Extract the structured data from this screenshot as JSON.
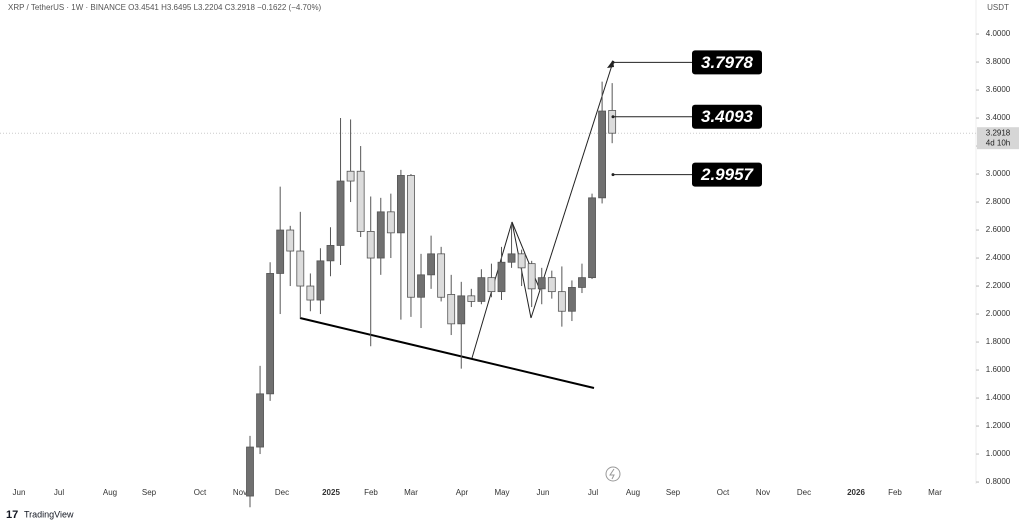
{
  "chart_data": {
    "type": "candlestick",
    "title": "XRP / TetherUS · 1W · BINANCE   O3.4541   H3.6495   L3.2204   C3.2918   −0.1622 (−4.70%)",
    "currency": "USDT",
    "open": [
      0.7,
      1.05,
      1.43,
      2.29,
      2.6,
      2.45,
      2.2,
      2.1,
      2.38,
      2.49,
      3.02,
      3.02,
      2.59,
      2.4,
      2.73,
      2.58,
      2.99,
      2.12,
      2.28,
      2.43,
      2.14,
      1.93,
      2.13,
      2.09,
      2.26,
      2.16,
      2.37,
      2.43,
      2.36,
      2.18,
      2.26,
      2.16,
      2.02,
      2.19,
      2.26,
      2.83,
      3.4541
    ],
    "high": [
      1.13,
      1.63,
      2.37,
      2.91,
      2.63,
      2.73,
      2.29,
      2.47,
      2.62,
      3.4,
      3.39,
      3.2,
      2.84,
      2.83,
      2.86,
      3.03,
      3.0,
      2.43,
      2.56,
      2.48,
      2.28,
      2.23,
      2.18,
      2.32,
      2.36,
      2.48,
      2.65,
      2.46,
      2.38,
      2.33,
      2.31,
      2.34,
      2.24,
      2.36,
      2.86,
      3.66,
      3.6495
    ],
    "low": [
      0.62,
      1.0,
      1.38,
      2.0,
      2.2,
      1.97,
      2.02,
      2.0,
      2.27,
      2.35,
      2.8,
      2.55,
      1.77,
      2.28,
      2.4,
      1.96,
      1.98,
      1.9,
      2.18,
      2.09,
      1.85,
      1.61,
      2.05,
      2.07,
      2.12,
      2.1,
      2.33,
      2.2,
      2.05,
      2.07,
      2.11,
      1.91,
      1.95,
      2.15,
      2.25,
      2.79,
      3.2204
    ],
    "close": [
      1.05,
      1.43,
      2.29,
      2.6,
      2.45,
      2.2,
      2.1,
      2.38,
      2.49,
      2.95,
      2.95,
      2.59,
      2.4,
      2.73,
      2.58,
      2.99,
      2.12,
      2.28,
      2.43,
      2.12,
      1.93,
      2.13,
      2.09,
      2.26,
      2.16,
      2.37,
      2.43,
      2.33,
      2.18,
      2.26,
      2.16,
      2.02,
      2.19,
      2.26,
      2.83,
      3.45,
      3.2918
    ],
    "up_color": "#707070",
    "down_color": "#dcdcdc",
    "ylim": [
      0.786,
      4.186
    ],
    "yticks": [
      {
        "value": 0.8,
        "label": "0.8000"
      },
      {
        "value": 1.0,
        "label": "1.0000"
      },
      {
        "value": 1.2,
        "label": "1.2000"
      },
      {
        "value": 1.4,
        "label": "1.4000"
      },
      {
        "value": 1.6,
        "label": "1.6000"
      },
      {
        "value": 1.8,
        "label": "1.8000"
      },
      {
        "value": 2.0,
        "label": "2.0000"
      },
      {
        "value": 2.2,
        "label": "2.2000"
      },
      {
        "value": 2.4,
        "label": "2.4000"
      },
      {
        "value": 2.6,
        "label": "2.6000"
      },
      {
        "value": 2.8,
        "label": "2.8000"
      },
      {
        "value": 3.0,
        "label": "3.0000"
      },
      {
        "value": 3.2,
        "label": "3.2000"
      },
      {
        "value": 3.4,
        "label": "3.4000"
      },
      {
        "value": 3.6,
        "label": "3.6000"
      },
      {
        "value": 3.8,
        "label": "3.8000"
      },
      {
        "value": 4.0,
        "label": "4.0000"
      }
    ],
    "x_labels": [
      "Jun",
      "Jul",
      "Aug",
      "Sep",
      "Oct",
      "Nov",
      "Dec",
      "2025",
      "Feb",
      "Mar",
      "Apr",
      "May",
      "Jun",
      "Jul",
      "Aug",
      "Sep",
      "Oct",
      "Nov",
      "Dec",
      "2026",
      "Feb",
      "Mar"
    ],
    "last_price": 3.2918,
    "countdown": "4d 10h",
    "annotations": [
      3.7978,
      3.4093,
      2.9957
    ],
    "brand": "TradingView"
  }
}
